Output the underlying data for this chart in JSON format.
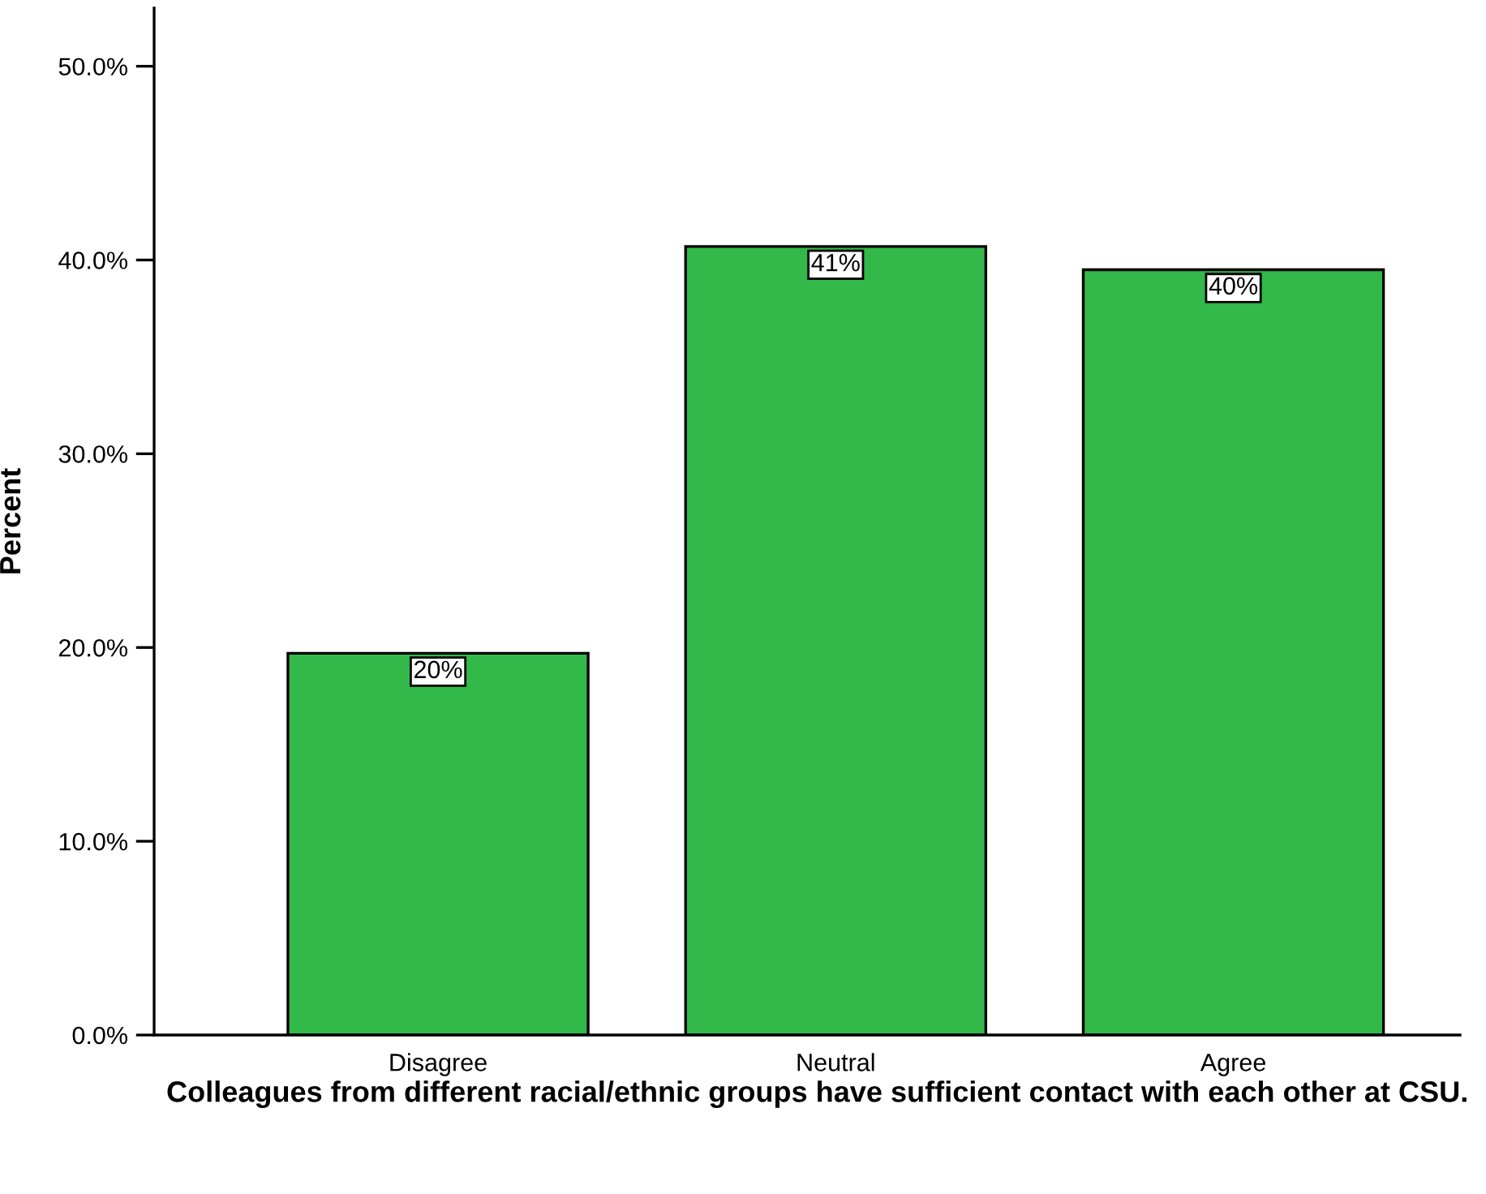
{
  "chart_data": {
    "type": "bar",
    "xlabel": "Colleagues from different racial/ethnic groups have sufficient contact with each other at CSU.",
    "ylabel": "Percent",
    "categories": [
      "Disagree",
      "Neutral",
      "Agree"
    ],
    "values": [
      19.7,
      40.7,
      39.5
    ],
    "value_labels": [
      "20%",
      "41%",
      "40%"
    ],
    "color": "#33b84a",
    "ylim": [
      0,
      53
    ],
    "yticks": [
      {
        "value": 0,
        "label": "0.0%"
      },
      {
        "value": 10,
        "label": "10.0%"
      },
      {
        "value": 20,
        "label": "20.0%"
      },
      {
        "value": 30,
        "label": "30.0%"
      },
      {
        "value": 40,
        "label": "40.0%"
      },
      {
        "value": 50,
        "label": "50.0%"
      }
    ]
  }
}
